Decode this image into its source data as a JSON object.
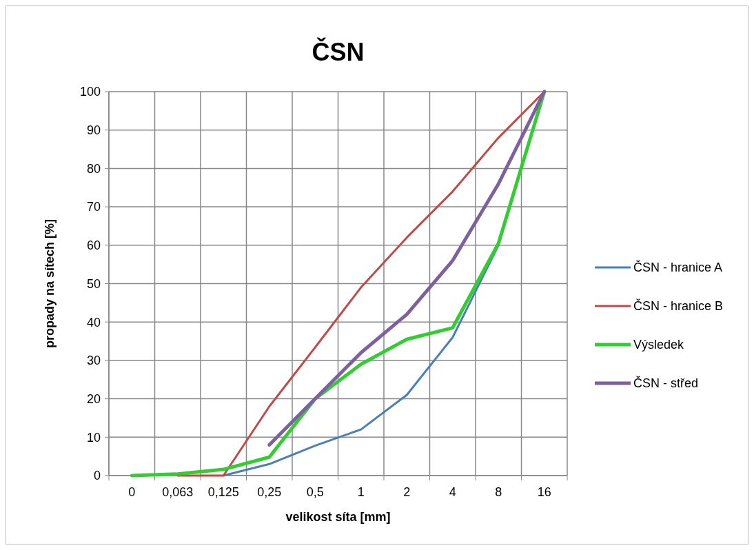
{
  "chart_data": {
    "type": "line",
    "title": "ČSN",
    "xlabel": "velikost síta [mm]",
    "ylabel": "propady na sítech [%]",
    "categories": [
      "0",
      "0,063",
      "0,125",
      "0,25",
      "0,5",
      "1",
      "2",
      "4",
      "8",
      "16"
    ],
    "series": [
      {
        "name": "ČSN - hranice A",
        "color": "#4a7ebb",
        "values": [
          null,
          null,
          0,
          3,
          7.8,
          12,
          21,
          36,
          60,
          100
        ]
      },
      {
        "name": "ČSN - hranice B",
        "color": "#be4b48",
        "values": [
          null,
          0,
          0,
          18,
          33.4,
          49,
          62,
          74,
          88,
          100
        ]
      },
      {
        "name": "Výsledek",
        "color": "#33cc33",
        "values": [
          0,
          0.4,
          1.6,
          4.8,
          20,
          29,
          35.5,
          38.5,
          60.5,
          100
        ]
      },
      {
        "name": "ČSN - střed",
        "color": "#7d60a0",
        "values": [
          null,
          null,
          null,
          8,
          20,
          32,
          42,
          56,
          76,
          100
        ]
      }
    ],
    "ylim": [
      0,
      100
    ],
    "yticks": [
      0,
      10,
      20,
      30,
      40,
      50,
      60,
      70,
      80,
      90,
      100
    ],
    "grid": true,
    "legend": "right",
    "marker": "none",
    "line_style": "solid"
  }
}
